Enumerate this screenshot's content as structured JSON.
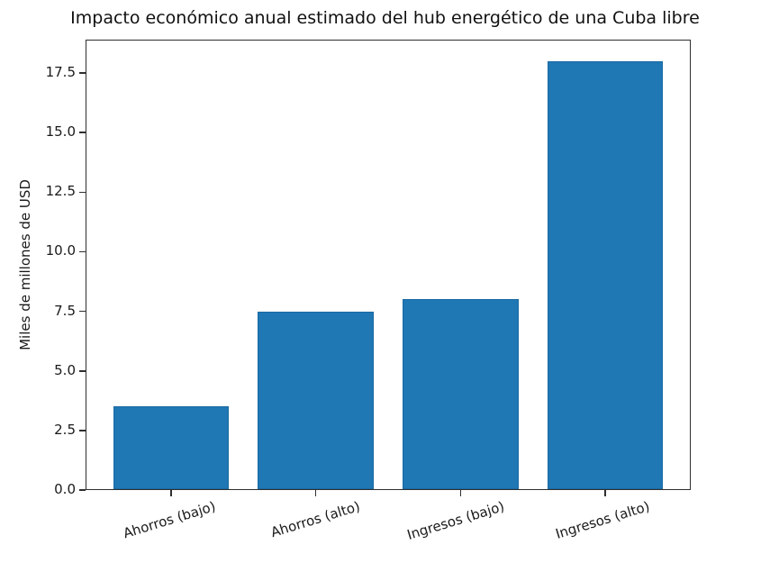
{
  "figure": {
    "background": "#ffffff"
  },
  "chart_data": {
    "type": "bar",
    "title": "Impacto económico anual estimado del hub energético de una Cuba libre",
    "categories": [
      "Ahorros (bajo)",
      "Ahorros (alto)",
      "Ingresos (bajo)",
      "Ingresos (alto)"
    ],
    "values": [
      3.5,
      7.5,
      8.0,
      18.0
    ],
    "xlabel": "",
    "ylabel": "Miles de millones de USD",
    "ylim": [
      0,
      18.9
    ],
    "xlim": [
      -0.59,
      3.59
    ],
    "yticks": [
      0.0,
      2.5,
      5.0,
      7.5,
      10.0,
      12.5,
      15.0,
      17.5
    ],
    "ytick_labels": [
      "0.0",
      "2.5",
      "5.0",
      "7.5",
      "10.0",
      "12.5",
      "15.0",
      "17.5"
    ],
    "bar_width_units": 0.8,
    "bar_color": "#1f77b4",
    "bar_edge_color": "#1a6aa3",
    "axis_color": "#2f2f2f",
    "grid": false,
    "legend": null,
    "x_tick_rotation_deg": 17
  }
}
